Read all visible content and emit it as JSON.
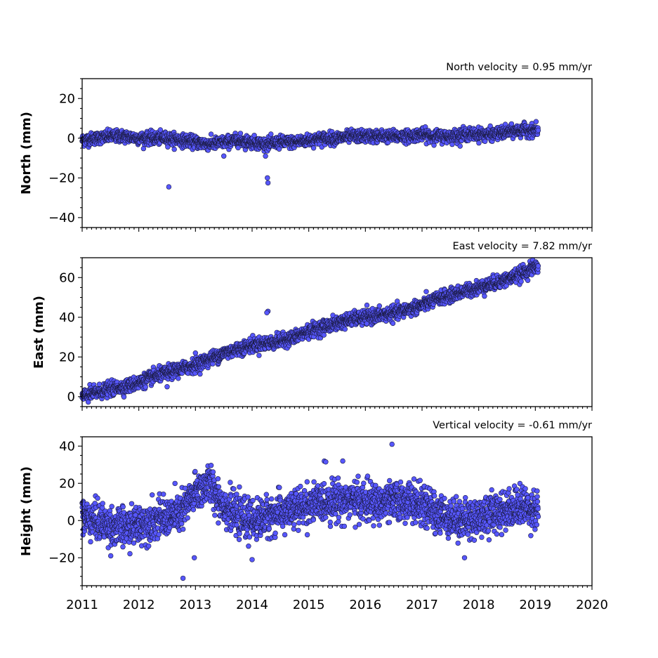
{
  "colors": {
    "marker_fill": "#5757ff",
    "marker_edge": "#1a1a40",
    "axes": "#000000",
    "background": "#ffffff"
  },
  "chart_data": [
    {
      "type": "scatter",
      "title": "North velocity = 0.95 mm/yr",
      "ylabel": "North (mm)",
      "xlim": [
        2011,
        2020
      ],
      "ylim": [
        -45,
        30
      ],
      "yticks": [
        20,
        0,
        -20,
        -40
      ],
      "ytick_labels": [
        "20",
        "0",
        "−20",
        "−40"
      ],
      "grid": false,
      "series": [
        {
          "x": [
            2011.0,
            2011.25,
            2011.5,
            2011.75,
            2012.0,
            2012.25,
            2012.5,
            2012.75,
            2013.0,
            2013.25,
            2013.5,
            2013.75,
            2014.0,
            2014.25,
            2014.5,
            2014.75,
            2015.0,
            2015.25,
            2015.5,
            2015.75,
            2016.0,
            2016.25,
            2016.5,
            2016.75,
            2017.0,
            2017.25,
            2017.5,
            2017.75,
            2018.0,
            2018.25,
            2018.5,
            2018.75,
            2019.05
          ],
          "y": [
            -1,
            0,
            1,
            1,
            0,
            0,
            0,
            -1,
            -2,
            -3,
            -2,
            -1,
            -2,
            -3,
            -2,
            -2,
            -1,
            0,
            0,
            1,
            1,
            1,
            1,
            1,
            2,
            1,
            1,
            2,
            2,
            2,
            3,
            4,
            4
          ],
          "spread": 2.5,
          "outliers": [
            [
              2012.53,
              -24.5
            ],
            [
              2014.27,
              -20.0
            ],
            [
              2014.28,
              -22.5
            ],
            [
              2013.5,
              -9.0
            ]
          ]
        }
      ]
    },
    {
      "type": "scatter",
      "title": "East velocity = 7.82 mm/yr",
      "ylabel": "East (mm)",
      "xlim": [
        2011,
        2020
      ],
      "ylim": [
        -5,
        70
      ],
      "yticks": [
        60,
        40,
        20,
        0
      ],
      "ytick_labels": [
        "60",
        "40",
        "20",
        "0"
      ],
      "grid": false,
      "series": [
        {
          "x": [
            2011.0,
            2011.25,
            2011.5,
            2011.75,
            2012.0,
            2012.25,
            2012.5,
            2012.75,
            2013.0,
            2013.25,
            2013.5,
            2013.75,
            2014.0,
            2014.25,
            2014.5,
            2014.75,
            2015.0,
            2015.25,
            2015.5,
            2015.75,
            2016.0,
            2016.25,
            2016.5,
            2016.75,
            2017.0,
            2017.25,
            2017.5,
            2017.75,
            2018.0,
            2018.25,
            2018.5,
            2018.75,
            2019.05
          ],
          "y": [
            0,
            2,
            4,
            5,
            7,
            10,
            12,
            14,
            16,
            19,
            22,
            24,
            26,
            27,
            28,
            30,
            33,
            35,
            37,
            39,
            40,
            41,
            42,
            44,
            46,
            49,
            51,
            53,
            55,
            57,
            59,
            62,
            66
          ],
          "spread": 2.8,
          "outliers": [
            [
              2014.28,
              43.0
            ],
            [
              2014.26,
              42.3
            ],
            [
              2012.5,
              5.0
            ],
            [
              2013.0,
              22.0
            ]
          ]
        }
      ]
    },
    {
      "type": "scatter",
      "title": "Vertical velocity = -0.61 mm/yr",
      "ylabel": "Height (mm)",
      "xlim": [
        2011,
        2020
      ],
      "ylim": [
        -35,
        45
      ],
      "yticks": [
        40,
        20,
        0,
        -20
      ],
      "ytick_labels": [
        "40",
        "20",
        "0",
        "−20"
      ],
      "xticks": [
        2011,
        2012,
        2013,
        2014,
        2015,
        2016,
        2017,
        2018,
        2019,
        2020
      ],
      "xtick_labels": [
        "2011",
        "2012",
        "2013",
        "2014",
        "2015",
        "2016",
        "2017",
        "2018",
        "2019",
        "2020"
      ],
      "grid": false,
      "series": [
        {
          "x": [
            2011.0,
            2011.25,
            2011.5,
            2011.75,
            2012.0,
            2012.25,
            2012.5,
            2012.75,
            2013.0,
            2013.25,
            2013.5,
            2013.75,
            2014.0,
            2014.25,
            2014.5,
            2014.75,
            2015.0,
            2015.25,
            2015.5,
            2015.75,
            2016.0,
            2016.25,
            2016.5,
            2016.75,
            2017.0,
            2017.25,
            2017.5,
            2017.75,
            2018.0,
            2018.25,
            2018.5,
            2018.75,
            2019.05
          ],
          "y": [
            2,
            0,
            -3,
            -4,
            -2,
            0,
            2,
            4,
            15,
            20,
            8,
            2,
            0,
            2,
            4,
            6,
            8,
            10,
            11,
            11,
            10,
            9,
            10,
            11,
            8,
            4,
            2,
            0,
            2,
            4,
            6,
            8,
            6
          ],
          "spread": 8.5,
          "outliers": [
            [
              2016.47,
              41.0
            ],
            [
              2012.78,
              -31.0
            ],
            [
              2015.3,
              31.5
            ],
            [
              2015.6,
              32.0
            ],
            [
              2014.0,
              -21.0
            ],
            [
              2012.98,
              -20.0
            ],
            [
              2017.75,
              -20.0
            ]
          ]
        }
      ]
    }
  ]
}
